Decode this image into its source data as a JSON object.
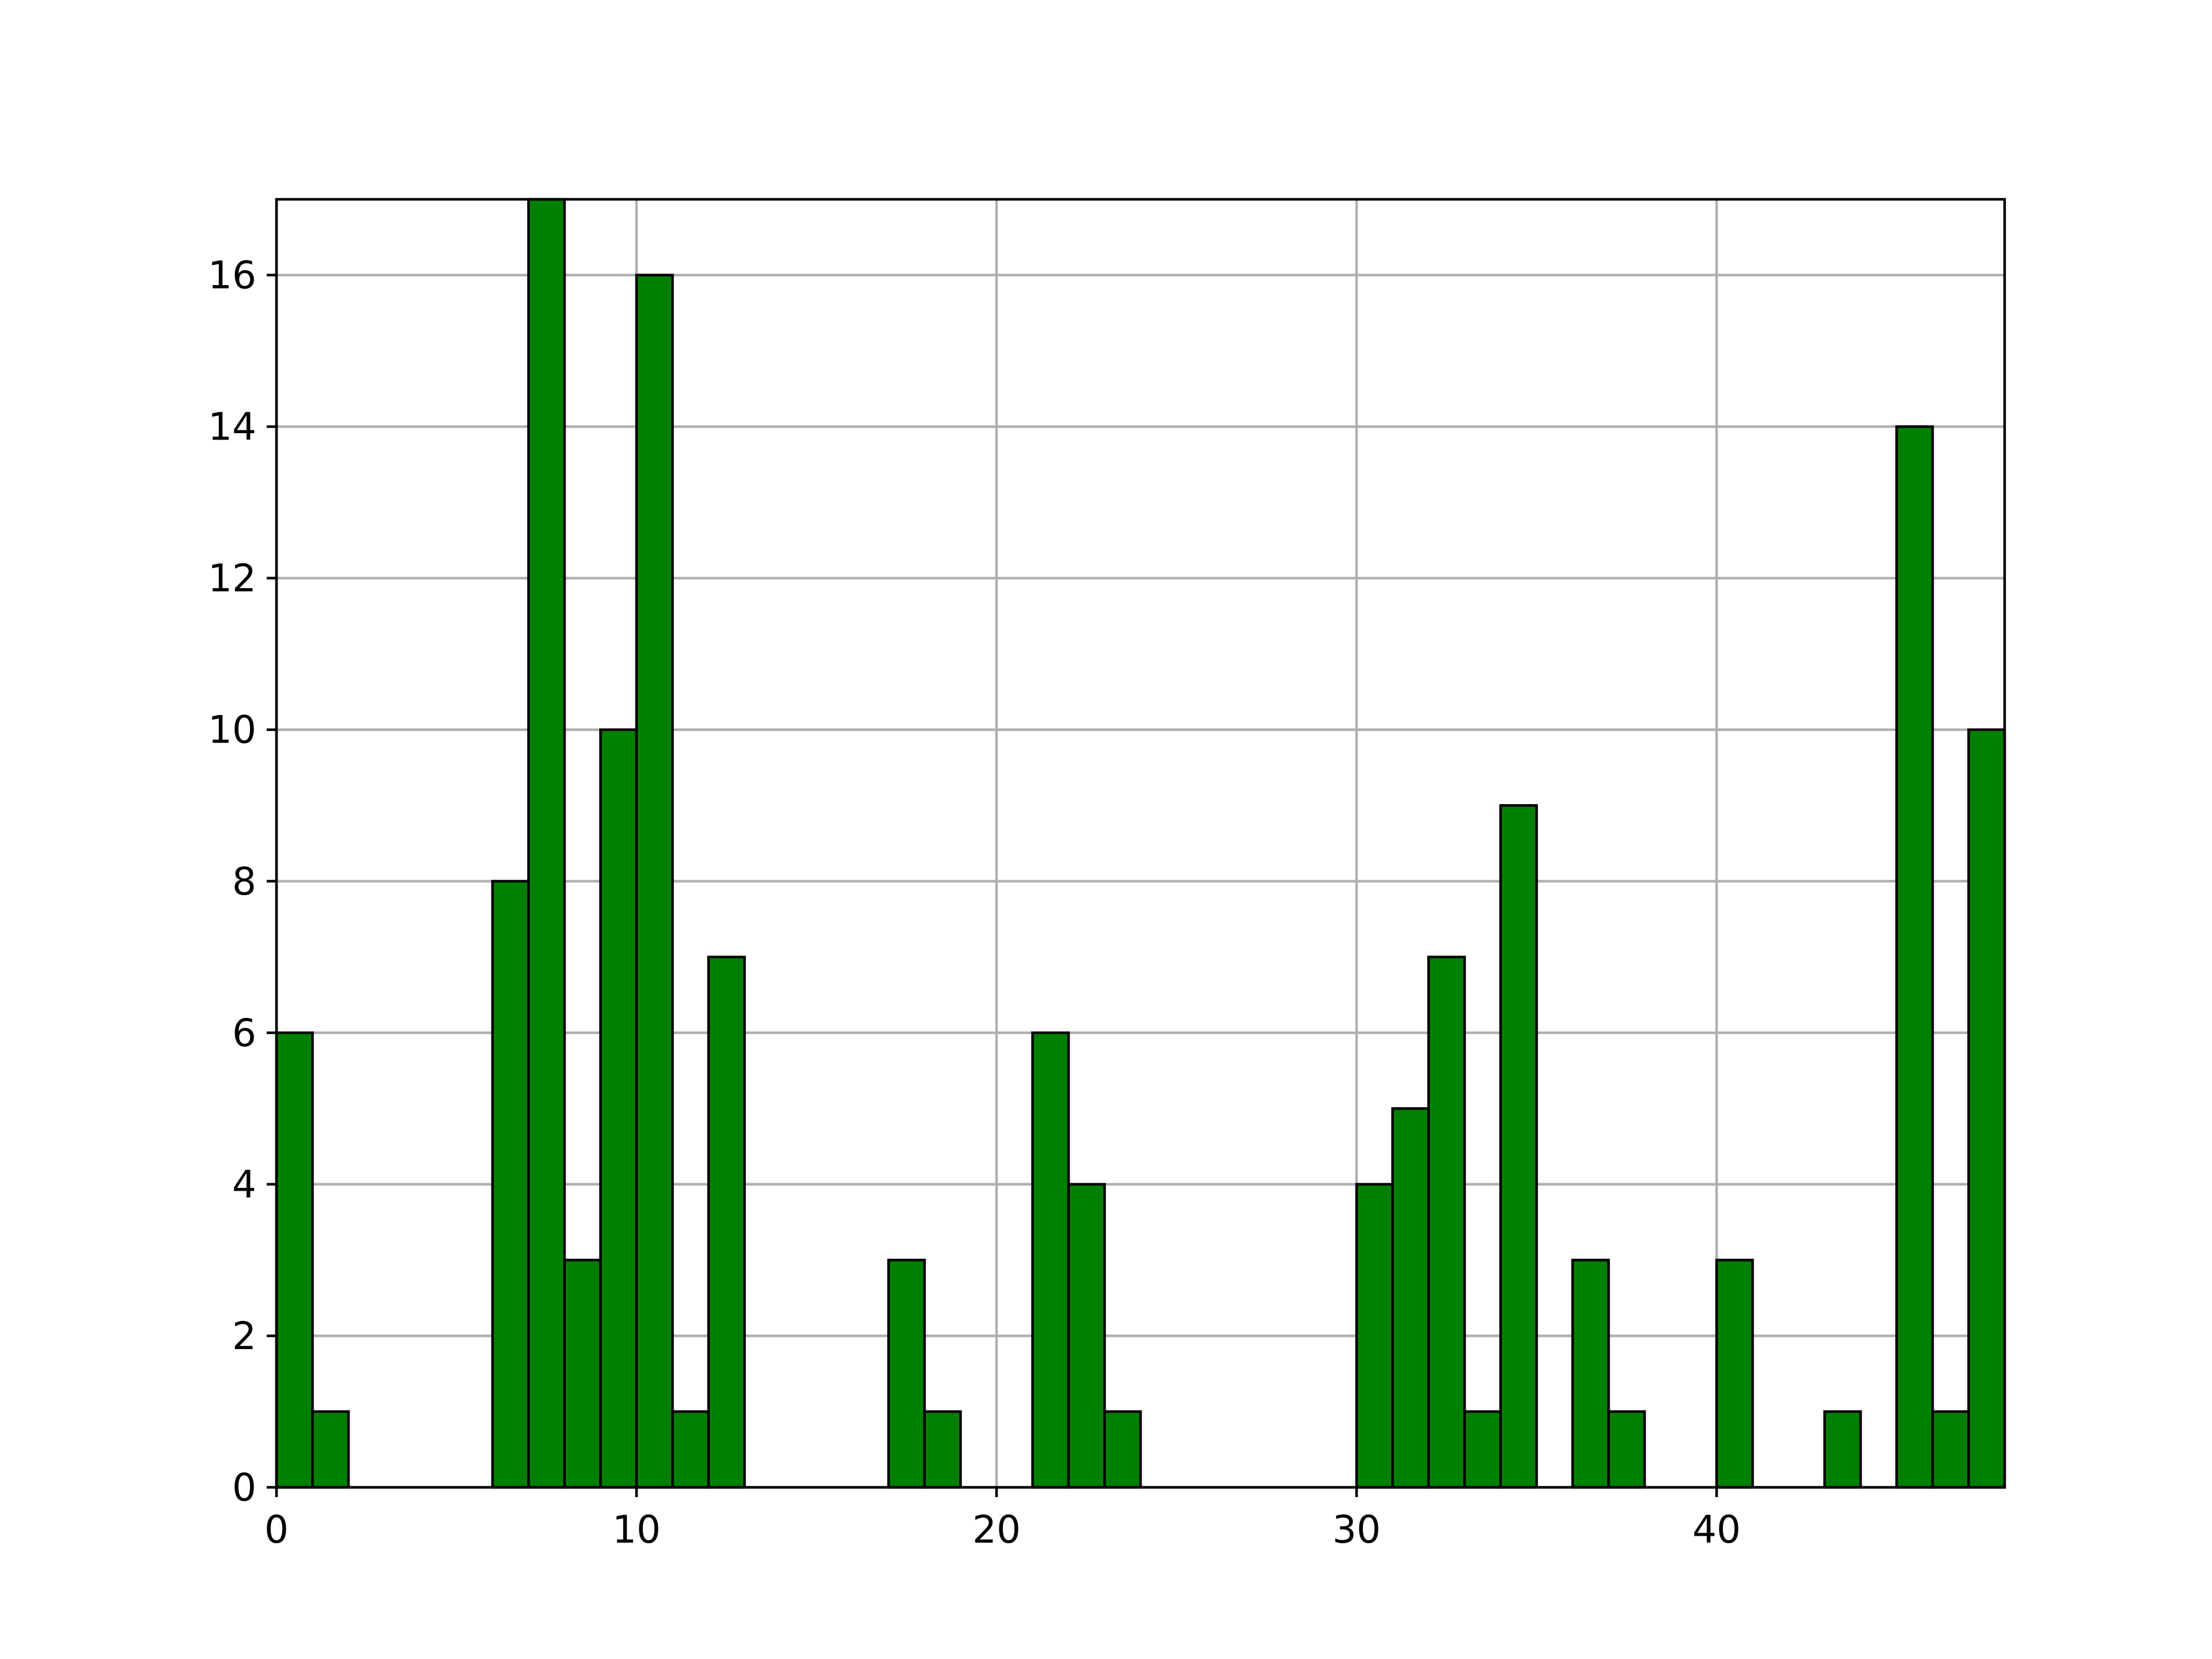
{
  "chart_data": {
    "type": "bar",
    "histogram": true,
    "bin_width": 1,
    "bins": [
      {
        "x0": 0,
        "count": 6
      },
      {
        "x0": 1,
        "count": 1
      },
      {
        "x0": 6,
        "count": 8
      },
      {
        "x0": 7,
        "count": 17
      },
      {
        "x0": 8,
        "count": 3
      },
      {
        "x0": 9,
        "count": 10
      },
      {
        "x0": 10,
        "count": 16
      },
      {
        "x0": 11,
        "count": 1
      },
      {
        "x0": 12,
        "count": 7
      },
      {
        "x0": 17,
        "count": 3
      },
      {
        "x0": 18,
        "count": 1
      },
      {
        "x0": 21,
        "count": 6
      },
      {
        "x0": 22,
        "count": 4
      },
      {
        "x0": 23,
        "count": 1
      },
      {
        "x0": 30,
        "count": 4
      },
      {
        "x0": 31,
        "count": 5
      },
      {
        "x0": 32,
        "count": 7
      },
      {
        "x0": 33,
        "count": 1
      },
      {
        "x0": 34,
        "count": 9
      },
      {
        "x0": 36,
        "count": 3
      },
      {
        "x0": 37,
        "count": 1
      },
      {
        "x0": 40,
        "count": 3
      },
      {
        "x0": 43,
        "count": 1
      },
      {
        "x0": 45,
        "count": 14
      },
      {
        "x0": 46,
        "count": 1
      },
      {
        "x0": 47,
        "count": 10
      }
    ],
    "xlim": [
      0,
      48
    ],
    "ylim": [
      0,
      17
    ],
    "xticks": [
      0,
      10,
      20,
      30,
      40
    ],
    "yticks": [
      0,
      2,
      4,
      6,
      8,
      10,
      12,
      14,
      16
    ],
    "title": "",
    "xlabel": "",
    "ylabel": "",
    "grid": true,
    "bar_color": "#008000",
    "edge_color": "#000000",
    "grid_color": "#b0b0b0"
  }
}
